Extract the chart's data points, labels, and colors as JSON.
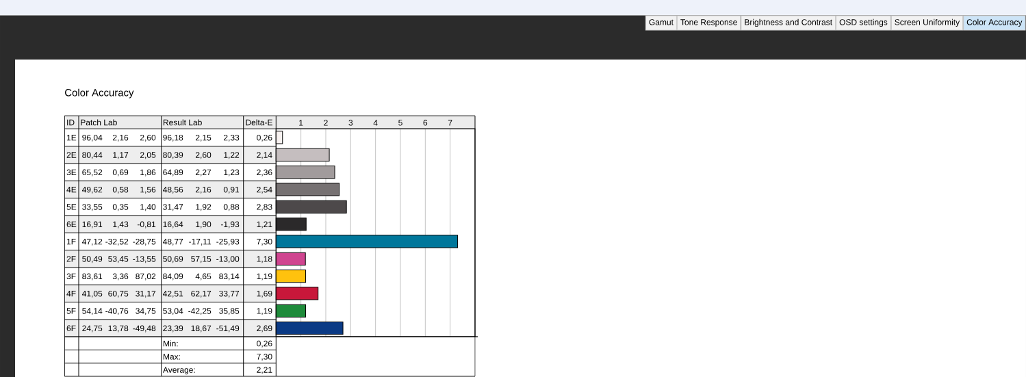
{
  "chart_data": {
    "type": "bar",
    "orientation": "horizontal",
    "title": "Color Accuracy",
    "xlabel": "Delta-E",
    "ylabel": "ID",
    "categories": [
      "1E",
      "2E",
      "3E",
      "4E",
      "5E",
      "6E",
      "1F",
      "2F",
      "3F",
      "4F",
      "5F",
      "6F"
    ],
    "values": [
      0.26,
      2.14,
      2.36,
      2.54,
      2.83,
      1.21,
      7.3,
      1.18,
      1.19,
      1.69,
      1.19,
      2.69
    ],
    "value_labels": [
      "0,26",
      "2,14",
      "2,36",
      "2,54",
      "2,83",
      "1,21",
      "7,30",
      "1,18",
      "1,19",
      "1,69",
      "1,19",
      "2,69"
    ],
    "colors": [
      "#f7f1f0",
      "#c5bebf",
      "#a19b9c",
      "#767172",
      "#4d494a",
      "#2b292a",
      "#00779b",
      "#d04590",
      "#ffc20e",
      "#c8173a",
      "#1f8b3b",
      "#0b3a85"
    ],
    "xlim": [
      0,
      8
    ],
    "x2lim": [
      0,
      8
    ],
    "x2ticks": [
      1,
      2,
      3,
      4,
      5,
      6,
      7
    ],
    "grid": "x",
    "annotations": [
      "Patch Lab",
      "Result Lab",
      "96,04",
      "2,16",
      "2,60",
      "96,18",
      "2,15",
      "2,33",
      "80,44",
      "1,17",
      "2,05",
      "80,39",
      "2,60",
      "1,22",
      "65,52",
      "0,69",
      "1,86",
      "64,89",
      "2,27",
      "1,23",
      "49,62",
      "0,58",
      "1,56",
      "48,56",
      "2,16",
      "0,91",
      "33,55",
      "0,35",
      "1,40",
      "31,47",
      "1,92",
      "0,88",
      "16,91",
      "1,43",
      "-0,81",
      "16,64",
      "1,90",
      "-1,93",
      "47,12",
      "-32,52",
      "-28,75",
      "48,77",
      "-17,11",
      "-25,93",
      "50,49",
      "53,45",
      "-13,55",
      "50,69",
      "57,15",
      "-13,00",
      "83,61",
      "3,36",
      "87,02",
      "84,09",
      "4,65",
      "83,14",
      "41,05",
      "60,75",
      "31,17",
      "42,51",
      "62,17",
      "33,77",
      "54,14",
      "-40,76",
      "34,75",
      "53,04",
      "-42,25",
      "35,85",
      "24,75",
      "13,78",
      "-49,48",
      "23,39",
      "18,67",
      "-51,49",
      "Min:",
      "0,26",
      "Max:",
      "7,30",
      "Average:",
      "2,21",
      "Gamut",
      "Tone Response",
      "Brightness and Contrast",
      "OSD settings",
      "Screen Uniformity",
      "Color Accuracy"
    ]
  }
}
